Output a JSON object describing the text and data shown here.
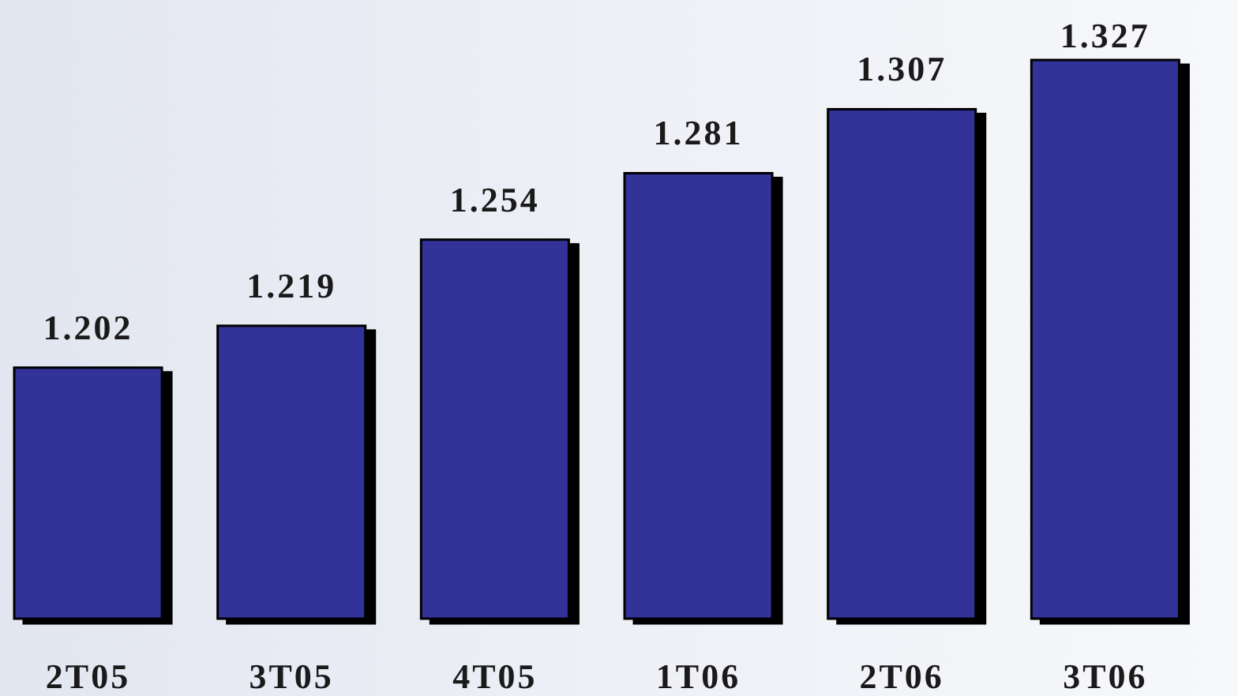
{
  "chart_data": {
    "type": "bar",
    "categories": [
      "2T05",
      "3T05",
      "4T05",
      "1T06",
      "2T06",
      "3T06"
    ],
    "values": [
      1.202,
      1.219,
      1.254,
      1.281,
      1.307,
      1.327
    ],
    "color": "#333399",
    "ylim": [
      1.1,
      1.327
    ],
    "data_labels": true,
    "tick_labels": "x"
  }
}
